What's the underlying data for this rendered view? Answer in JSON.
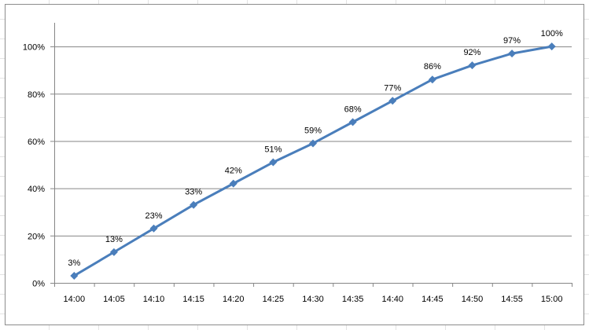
{
  "chart_data": {
    "type": "line",
    "title": "",
    "xlabel": "",
    "ylabel": "",
    "categories": [
      "14:00",
      "14:05",
      "14:10",
      "14:15",
      "14:20",
      "14:25",
      "14:30",
      "14:35",
      "14:40",
      "14:45",
      "14:50",
      "14:55",
      "15:00"
    ],
    "values": [
      0.03,
      0.13,
      0.23,
      0.33,
      0.42,
      0.51,
      0.59,
      0.68,
      0.77,
      0.86,
      0.92,
      0.97,
      1.0
    ],
    "data_labels": [
      "3%",
      "13%",
      "23%",
      "33%",
      "42%",
      "51%",
      "59%",
      "68%",
      "77%",
      "86%",
      "92%",
      "97%",
      "100%"
    ],
    "ylim": [
      0,
      1.1
    ],
    "yticks": [
      0,
      0.2,
      0.4,
      0.6,
      0.8,
      1.0
    ],
    "ytick_labels": [
      "0%",
      "20%",
      "40%",
      "60%",
      "80%",
      "100%"
    ],
    "grid": "horizontal",
    "legend": "none",
    "marker": "diamond",
    "line_color": "#4a7ebb",
    "grid_color": "#868686"
  }
}
